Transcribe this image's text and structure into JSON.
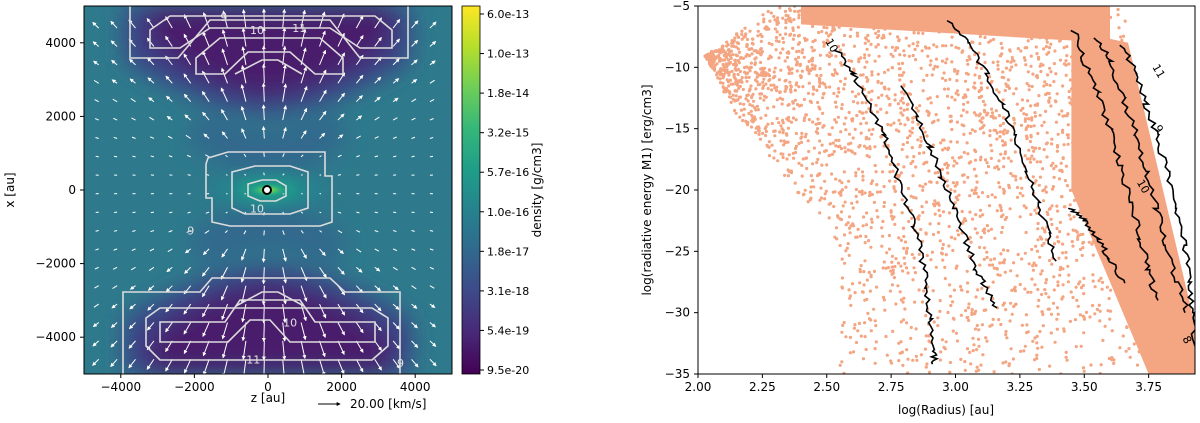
{
  "chart_data": [
    {
      "type": "heatmap",
      "panel": "left",
      "xlabel": "z [au]",
      "ylabel": "x [au]",
      "xlim": [
        -5000,
        5000
      ],
      "ylim": [
        -5000,
        5000
      ],
      "xticks": [
        -4000,
        -2000,
        0,
        2000,
        4000
      ],
      "xtick_labels": [
        "−4000",
        "−2000",
        "0",
        "2000",
        "4000"
      ],
      "yticks": [
        4000,
        2000,
        0,
        -2000,
        -4000
      ],
      "ytick_labels": [
        "4000",
        "2000",
        "0",
        "−2000",
        "−4000"
      ],
      "colorbar": {
        "label": "density [g/cm3]",
        "tick_labels": [
          "6.0e-13",
          "1.0e-13",
          "1.8e-14",
          "3.2e-15",
          "5.7e-16",
          "1.0e-16",
          "1.8e-17",
          "3.1e-18",
          "5.4e-19",
          "9.5e-20"
        ],
        "colormap": "viridis",
        "colors": [
          "#440154",
          "#482878",
          "#3e4989",
          "#31688e",
          "#26828e",
          "#1f9e89",
          "#35b779",
          "#6ece58",
          "#b5de2b",
          "#fde725"
        ]
      },
      "contour_labels": [
        {
          "text": "9",
          "z": -1200,
          "x": 4700
        },
        {
          "text": "10",
          "z": -300,
          "x": 4350
        },
        {
          "text": "11",
          "z": 850,
          "x": 4400
        },
        {
          "text": "10",
          "z": -300,
          "x": -500
        },
        {
          "text": "9",
          "z": -2100,
          "x": -1100
        },
        {
          "text": "10",
          "z": 600,
          "x": -3600
        },
        {
          "text": "11",
          "z": -400,
          "x": -4600
        },
        {
          "text": "9",
          "z": 3600,
          "x": -4700
        }
      ],
      "velocity_key": {
        "text": "20.00 [km/s]",
        "speed": 20.0
      }
    },
    {
      "type": "scatter",
      "panel": "right",
      "xlabel": "log(Radius) [au]",
      "ylabel": "log(radiative energy M1) [erg/cm3]",
      "xlim": [
        2.0,
        3.93
      ],
      "ylim": [
        -35,
        -5
      ],
      "xticks": [
        2.0,
        2.25,
        2.5,
        2.75,
        3.0,
        3.25,
        3.5,
        3.75
      ],
      "xtick_labels": [
        "2.00",
        "2.25",
        "2.50",
        "2.75",
        "3.00",
        "3.25",
        "3.50",
        "3.75"
      ],
      "yticks": [
        -5,
        -10,
        -15,
        -20,
        -25,
        -30,
        -35
      ],
      "ytick_labels": [
        "−5",
        "−10",
        "−15",
        "−20",
        "−25",
        "−30",
        "−35"
      ],
      "point_color": "#f4a582",
      "line_color": "#000000",
      "contour_labels": [
        {
          "text": "10",
          "x": 2.52,
          "y": -8.2
        },
        {
          "text": "11",
          "x": 3.79,
          "y": -10.3
        },
        {
          "text": "9",
          "x": 3.79,
          "y": -15.0
        },
        {
          "text": "10",
          "x": 3.73,
          "y": -19.7
        },
        {
          "text": "8",
          "x": 3.9,
          "y": -32.2
        }
      ],
      "lines": [
        {
          "name": "band-1",
          "points": [
            [
              2.54,
              -8.6
            ],
            [
              2.6,
              -10.5
            ],
            [
              2.66,
              -13.0
            ],
            [
              2.72,
              -15.5
            ],
            [
              2.76,
              -18.0
            ],
            [
              2.8,
              -20.5
            ],
            [
              2.84,
              -23.0
            ],
            [
              2.87,
              -25.5
            ],
            [
              2.89,
              -28.0
            ],
            [
              2.9,
              -30.5
            ],
            [
              2.91,
              -33.0
            ],
            [
              2.92,
              -34.2
            ]
          ]
        },
        {
          "name": "band-2",
          "points": [
            [
              2.8,
              -11.5
            ],
            [
              2.85,
              -14.0
            ],
            [
              2.9,
              -16.5
            ],
            [
              2.95,
              -19.0
            ],
            [
              3.0,
              -21.5
            ],
            [
              3.04,
              -24.0
            ],
            [
              3.08,
              -26.5
            ],
            [
              3.12,
              -28.0
            ],
            [
              3.16,
              -29.6
            ]
          ]
        },
        {
          "name": "band-3",
          "points": [
            [
              2.98,
              -6.2
            ],
            [
              3.05,
              -8.0
            ],
            [
              3.12,
              -10.5
            ],
            [
              3.18,
              -13.0
            ],
            [
              3.23,
              -15.5
            ],
            [
              3.28,
              -18.5
            ],
            [
              3.32,
              -21.0
            ],
            [
              3.36,
              -23.5
            ],
            [
              3.38,
              -25.8
            ]
          ]
        },
        {
          "name": "band-4",
          "points": [
            [
              3.45,
              -21.5
            ],
            [
              3.5,
              -22.5
            ],
            [
              3.55,
              -24.0
            ],
            [
              3.6,
              -25.6
            ],
            [
              3.65,
              -27.6
            ]
          ]
        },
        {
          "name": "band-5",
          "points": [
            [
              3.46,
              -7.0
            ],
            [
              3.5,
              -9.5
            ],
            [
              3.55,
              -12.0
            ],
            [
              3.6,
              -15.0
            ],
            [
              3.64,
              -18.0
            ],
            [
              3.68,
              -21.0
            ],
            [
              3.72,
              -24.0
            ],
            [
              3.75,
              -26.5
            ],
            [
              3.78,
              -29.0
            ]
          ]
        },
        {
          "name": "band-6",
          "points": [
            [
              3.55,
              -7.6
            ],
            [
              3.6,
              -9.5
            ],
            [
              3.65,
              -12.5
            ],
            [
              3.7,
              -15.5
            ],
            [
              3.74,
              -18.5
            ],
            [
              3.78,
              -21.5
            ],
            [
              3.82,
              -24.5
            ],
            [
              3.86,
              -27.5
            ],
            [
              3.9,
              -30.0
            ]
          ]
        },
        {
          "name": "band-7",
          "points": [
            [
              3.65,
              -8.2
            ],
            [
              3.7,
              -10.5
            ],
            [
              3.74,
              -13.0
            ],
            [
              3.78,
              -15.5
            ],
            [
              3.82,
              -18.5
            ],
            [
              3.86,
              -21.5
            ],
            [
              3.89,
              -24.5
            ],
            [
              3.91,
              -27.5
            ],
            [
              3.92,
              -30.0
            ],
            [
              3.93,
              -33.5
            ]
          ]
        }
      ]
    }
  ]
}
